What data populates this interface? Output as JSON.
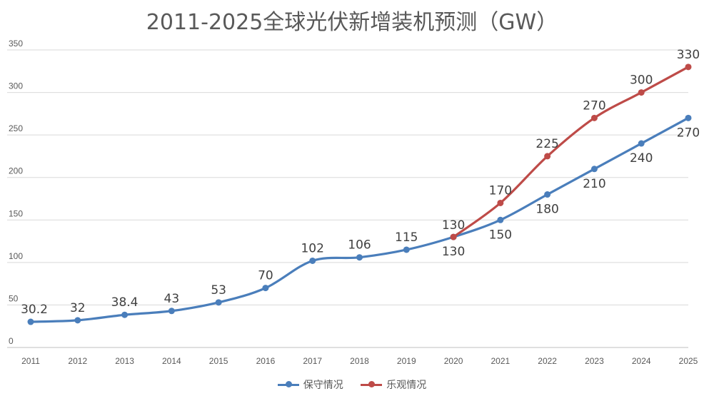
{
  "chart_data": {
    "type": "line",
    "title": "2011-2025全球光伏新增装机预测（GW）",
    "xlabel": "",
    "ylabel": "",
    "ylim": [
      0,
      350
    ],
    "yticks": [
      0,
      50,
      100,
      150,
      200,
      250,
      300,
      350
    ],
    "grid": true,
    "legend_position": "bottom",
    "x": [
      "2011",
      "2012",
      "2013",
      "2014",
      "2015",
      "2016",
      "2017",
      "2018",
      "2019",
      "2020",
      "2021",
      "2022",
      "2023",
      "2024",
      "2025"
    ],
    "series": [
      {
        "name": "保守情况",
        "color": "#4a7ebb",
        "x": [
          "2011",
          "2012",
          "2013",
          "2014",
          "2015",
          "2016",
          "2017",
          "2018",
          "2019",
          "2020",
          "2021",
          "2022",
          "2023",
          "2024",
          "2025"
        ],
        "values": [
          30.2,
          32,
          38.4,
          43,
          53,
          70,
          102,
          106,
          115,
          130,
          150,
          180,
          210,
          240,
          270
        ],
        "labels": [
          "30.2",
          "32",
          "38.4",
          "43",
          "53",
          "70",
          "102",
          "106",
          "115",
          "130",
          "150",
          "180",
          "210",
          "240",
          "270"
        ]
      },
      {
        "name": "乐观情况",
        "color": "#be4b48",
        "x": [
          "2020",
          "2021",
          "2022",
          "2023",
          "2024",
          "2025"
        ],
        "values": [
          130,
          170,
          225,
          270,
          300,
          330
        ],
        "labels": [
          "130",
          "170",
          "225",
          "270",
          "300",
          "330"
        ]
      }
    ]
  }
}
